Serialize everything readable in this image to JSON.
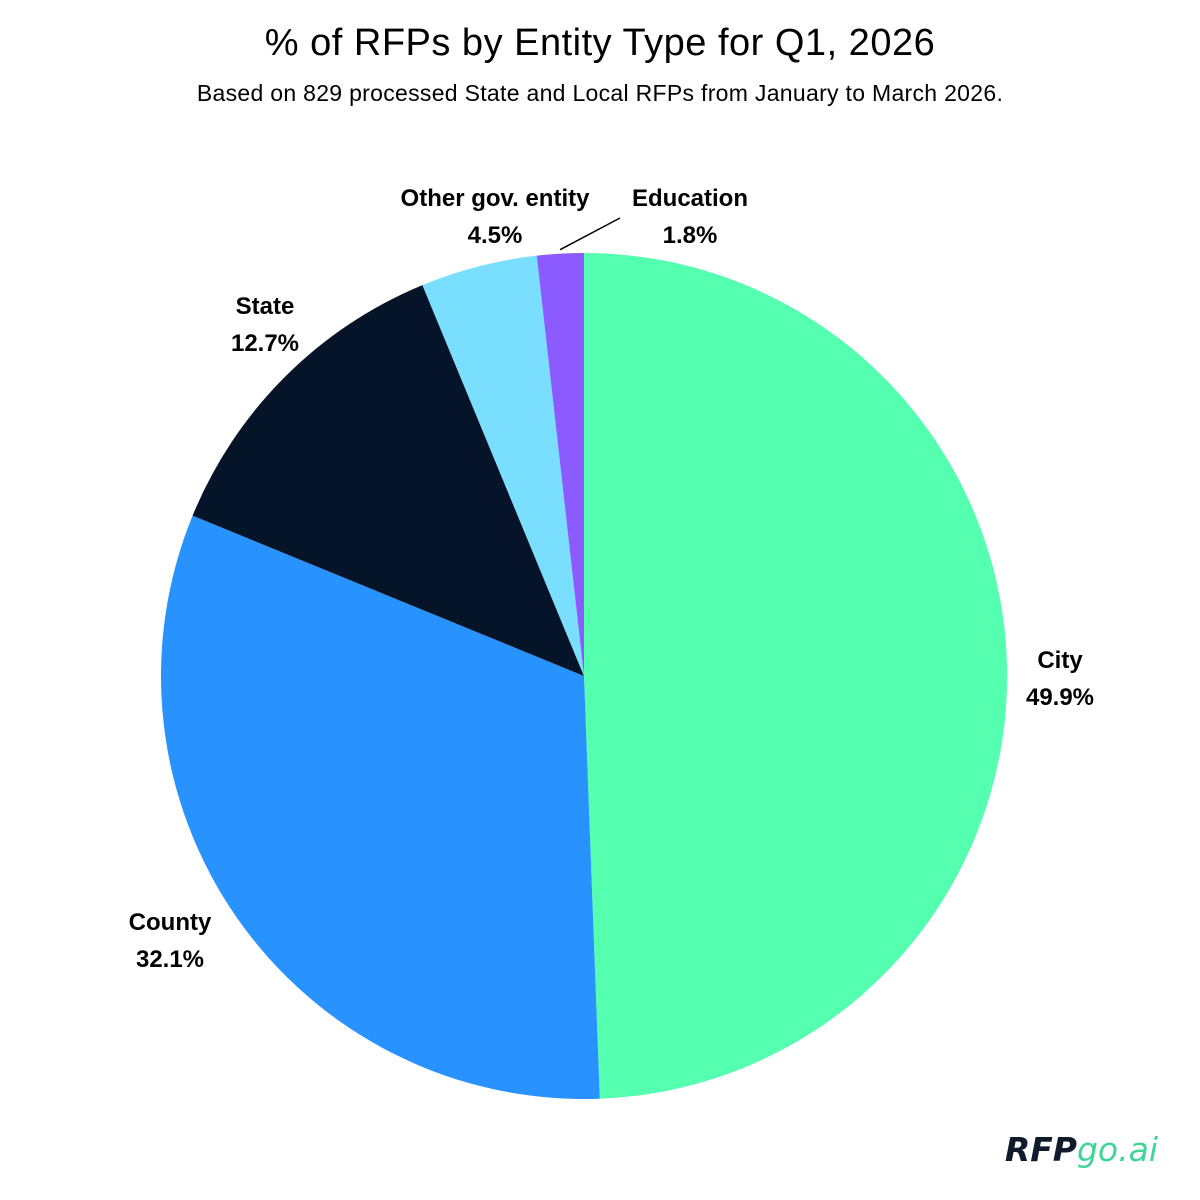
{
  "header": {
    "title": "% of RFPs by Entity Type for Q1, 2026",
    "subtitle": "Based on 829 processed State and Local RFPs from January to March 2026."
  },
  "brand": {
    "part1": "RFP",
    "part2": "go.ai"
  },
  "chart_data": {
    "type": "pie",
    "title": "% of RFPs by Entity Type for Q1, 2026",
    "subtitle": "Based on 829 processed State and Local RFPs from January to March 2026.",
    "start": "12 o'clock",
    "direction": "clockwise",
    "slices": [
      {
        "label": "City",
        "value": 49.9,
        "value_label": "49.9%",
        "color": "#55FFB0"
      },
      {
        "label": "County",
        "value": 32.1,
        "value_label": "32.1%",
        "color": "#2892FF"
      },
      {
        "label": "State",
        "value": 12.7,
        "value_label": "12.7%",
        "color": "#051428"
      },
      {
        "label": "Other gov. entity",
        "value": 4.5,
        "value_label": "4.5%",
        "color": "#7ADFFF"
      },
      {
        "label": "Education",
        "value": 1.8,
        "value_label": "1.8%",
        "color": "#8C5BFF"
      }
    ]
  }
}
